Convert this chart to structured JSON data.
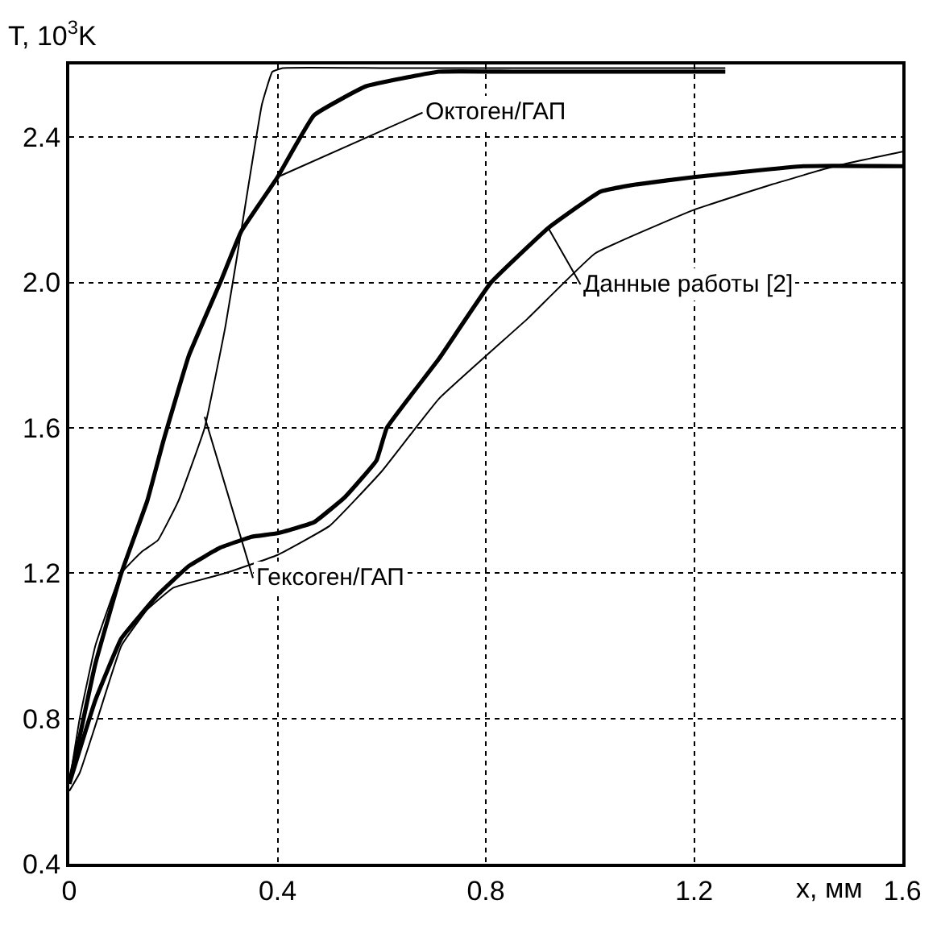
{
  "chart_data": {
    "type": "line",
    "xlabel": "x, мм",
    "ylabel": "T, 10$^{3}$K",
    "xlim": [
      0,
      1.6
    ],
    "ylim": [
      0.4,
      2.6
    ],
    "xticks": [
      0,
      0.4,
      0.8,
      1.2,
      1.6
    ],
    "yticks": [
      0.4,
      0.8,
      1.2,
      1.6,
      {
        "value": 2.0,
        "label": "2.0"
      },
      2.4
    ],
    "grid": true,
    "marker": "none",
    "line_style": "solid",
    "series": [
      {
        "color": "#000000",
        "x": [
          0,
          0.02,
          0.05,
          0.1,
          0.15,
          0.18,
          0.23,
          0.29,
          0.33,
          0.4,
          0.47,
          0.57,
          0.71,
          0.85,
          1.0,
          1.26
        ],
        "values": [
          0.62,
          0.75,
          0.95,
          1.2,
          1.4,
          1.56,
          1.8,
          2.0,
          2.14,
          2.29,
          2.46,
          2.54,
          2.58,
          2.58,
          2.58,
          2.58
        ]
      },
      {
        "color": "#000000",
        "x": [
          0,
          0.02,
          0.05,
          0.1,
          0.14,
          0.17,
          0.21,
          0.26,
          0.3,
          0.33,
          0.37,
          0.39,
          0.41,
          0.6,
          1.0,
          1.26
        ],
        "values": [
          0.62,
          0.8,
          1.0,
          1.2,
          1.26,
          1.29,
          1.4,
          1.6,
          1.88,
          2.14,
          2.49,
          2.58,
          2.59,
          2.59,
          2.59,
          2.59
        ]
      },
      {
        "color": "#000000",
        "x": [
          0,
          0.05,
          0.1,
          0.17,
          0.23,
          0.29,
          0.35,
          0.4,
          0.47,
          0.53,
          0.59,
          0.61,
          0.71,
          0.81,
          0.92,
          1.02,
          1.09,
          1.2,
          1.41,
          1.6
        ],
        "values": [
          0.62,
          0.85,
          1.02,
          1.14,
          1.22,
          1.27,
          1.3,
          1.31,
          1.34,
          1.41,
          1.51,
          1.6,
          1.79,
          2.0,
          2.15,
          2.25,
          2.27,
          2.29,
          2.32,
          2.32
        ]
      },
      {
        "color": "#000000",
        "x": [
          0,
          0.02,
          0.05,
          0.1,
          0.15,
          0.2,
          0.3,
          0.4,
          0.5,
          0.6,
          0.71,
          0.88,
          1.01,
          1.2,
          1.35,
          1.47,
          1.6
        ],
        "values": [
          0.6,
          0.65,
          0.78,
          1.0,
          1.1,
          1.16,
          1.2,
          1.25,
          1.33,
          1.48,
          1.68,
          1.9,
          2.08,
          2.2,
          2.27,
          2.32,
          2.36
        ]
      }
    ],
    "annotations": [
      {
        "text": "Октоген/ГАП",
        "x": 0.4,
        "y": 2.29
      },
      {
        "text": "Данные работы [2]",
        "x": 0.92,
        "y": 2.15
      },
      {
        "text": "Гексоген/ГАП",
        "x": 0.26,
        "y": 1.63
      }
    ]
  }
}
